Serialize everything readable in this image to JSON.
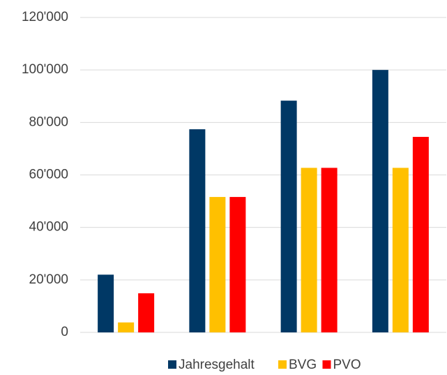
{
  "chart_data": {
    "type": "bar",
    "categories": [
      null,
      null,
      null,
      null
    ],
    "series": [
      {
        "name": "Jahresgehalt",
        "color": "#003865",
        "values": [
          22000,
          77400,
          88300,
          100000
        ]
      },
      {
        "name": "BVG",
        "color": "#ffc000",
        "values": [
          3800,
          51600,
          62700,
          62700
        ]
      },
      {
        "name": "PVO",
        "color": "#ff0000",
        "values": [
          14900,
          51600,
          62700,
          74500
        ]
      }
    ],
    "ylim": [
      0,
      120000
    ],
    "yticks": [
      0,
      {
        "value": 20000,
        "label": "20'000"
      },
      {
        "value": 40000,
        "label": "40'000"
      },
      {
        "value": 60000,
        "label": "60'000"
      },
      {
        "value": 80000,
        "label": "80'000"
      },
      {
        "value": 100000,
        "label": "100'000"
      },
      {
        "value": 120000,
        "label": "120'000"
      }
    ],
    "grid": true,
    "legend": "bottom"
  }
}
